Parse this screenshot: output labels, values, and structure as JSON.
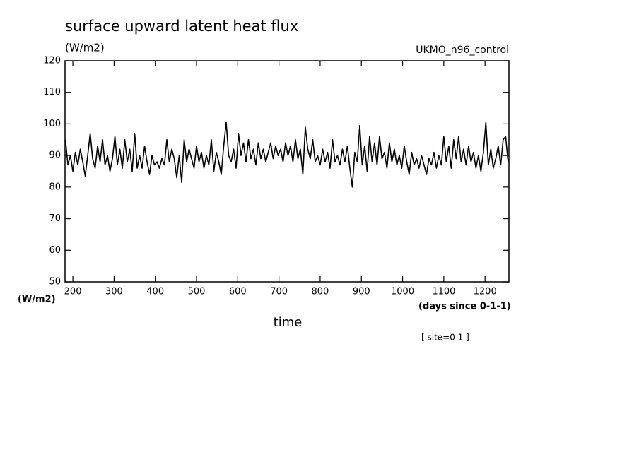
{
  "chart_data": {
    "type": "line",
    "title": "surface upward latent heat flux",
    "y_units": "(W/m2)",
    "dataset": "UKMO_n96_control",
    "y_axis_units": "(W/m2)",
    "x_units": "(days since 0-1-1)",
    "x_label": "time",
    "subset": "[ site=0 1 ]",
    "color": "#000000",
    "xlim": [
      181,
      1258
    ],
    "ylim": [
      50,
      120
    ],
    "xticks": [
      200,
      300,
      400,
      500,
      600,
      700,
      800,
      900,
      1000,
      1100,
      1200
    ],
    "yticks": [
      50,
      60,
      70,
      80,
      90,
      100,
      110,
      120
    ],
    "x": [
      182,
      188,
      194,
      200,
      206,
      212,
      218,
      224,
      230,
      236,
      242,
      248,
      254,
      260,
      266,
      272,
      278,
      284,
      290,
      296,
      302,
      308,
      314,
      320,
      326,
      332,
      338,
      344,
      350,
      356,
      362,
      368,
      374,
      380,
      386,
      392,
      398,
      404,
      410,
      416,
      422,
      428,
      434,
      440,
      446,
      452,
      458,
      464,
      470,
      476,
      482,
      488,
      494,
      500,
      506,
      512,
      518,
      524,
      530,
      536,
      542,
      548,
      554,
      560,
      566,
      572,
      578,
      584,
      590,
      596,
      602,
      608,
      614,
      620,
      626,
      632,
      638,
      644,
      650,
      656,
      662,
      668,
      674,
      680,
      686,
      692,
      698,
      704,
      710,
      716,
      722,
      728,
      734,
      740,
      746,
      752,
      758,
      764,
      770,
      776,
      782,
      788,
      794,
      800,
      806,
      812,
      818,
      824,
      830,
      836,
      842,
      848,
      854,
      860,
      866,
      872,
      878,
      884,
      890,
      896,
      902,
      908,
      914,
      920,
      926,
      932,
      938,
      944,
      950,
      956,
      962,
      968,
      974,
      980,
      986,
      992,
      998,
      1004,
      1010,
      1016,
      1022,
      1028,
      1034,
      1040,
      1046,
      1052,
      1058,
      1064,
      1070,
      1076,
      1082,
      1088,
      1094,
      1100,
      1106,
      1112,
      1118,
      1124,
      1130,
      1136,
      1142,
      1148,
      1154,
      1160,
      1166,
      1172,
      1178,
      1184,
      1190,
      1196,
      1202,
      1208,
      1214,
      1220,
      1226,
      1232,
      1238,
      1244,
      1250,
      1256
    ],
    "values": [
      95,
      87,
      90,
      85,
      91,
      87,
      92,
      88,
      83.5,
      90,
      97,
      89,
      86,
      93,
      88,
      95,
      87,
      90,
      85,
      89,
      96,
      87,
      92,
      86,
      95,
      88,
      92,
      85,
      97,
      86,
      90,
      86,
      93,
      88,
      84,
      90,
      87,
      88,
      86,
      89,
      87,
      95,
      88,
      92,
      89,
      83,
      90,
      81.5,
      95,
      88,
      92,
      89,
      86,
      93,
      88,
      91,
      86,
      90,
      87,
      95,
      85,
      91,
      88,
      84,
      93,
      100.5,
      90,
      88,
      92,
      86,
      97,
      90,
      94,
      88,
      95,
      89,
      92,
      87,
      94,
      89,
      92,
      88,
      91,
      94,
      89,
      93,
      90,
      92,
      88,
      94,
      90,
      93,
      88,
      95,
      89,
      92,
      84,
      99,
      92,
      89,
      95,
      88,
      90,
      87,
      92,
      88,
      91,
      86,
      95,
      88,
      90,
      87,
      92,
      88,
      93,
      86,
      80,
      91,
      88,
      99.5,
      87,
      93,
      85,
      96,
      88,
      94,
      87,
      96,
      89,
      91,
      86,
      94,
      88,
      92,
      87,
      90,
      86,
      93,
      88,
      84,
      91,
      87,
      89,
      86,
      90,
      87,
      84,
      89,
      87,
      91,
      86,
      90,
      87,
      96,
      88,
      93,
      86,
      95,
      89,
      96,
      88,
      92,
      87,
      93,
      88,
      91,
      86,
      90,
      85,
      91,
      100.5,
      87,
      92,
      86,
      89,
      93,
      87,
      95,
      96,
      88
    ]
  }
}
